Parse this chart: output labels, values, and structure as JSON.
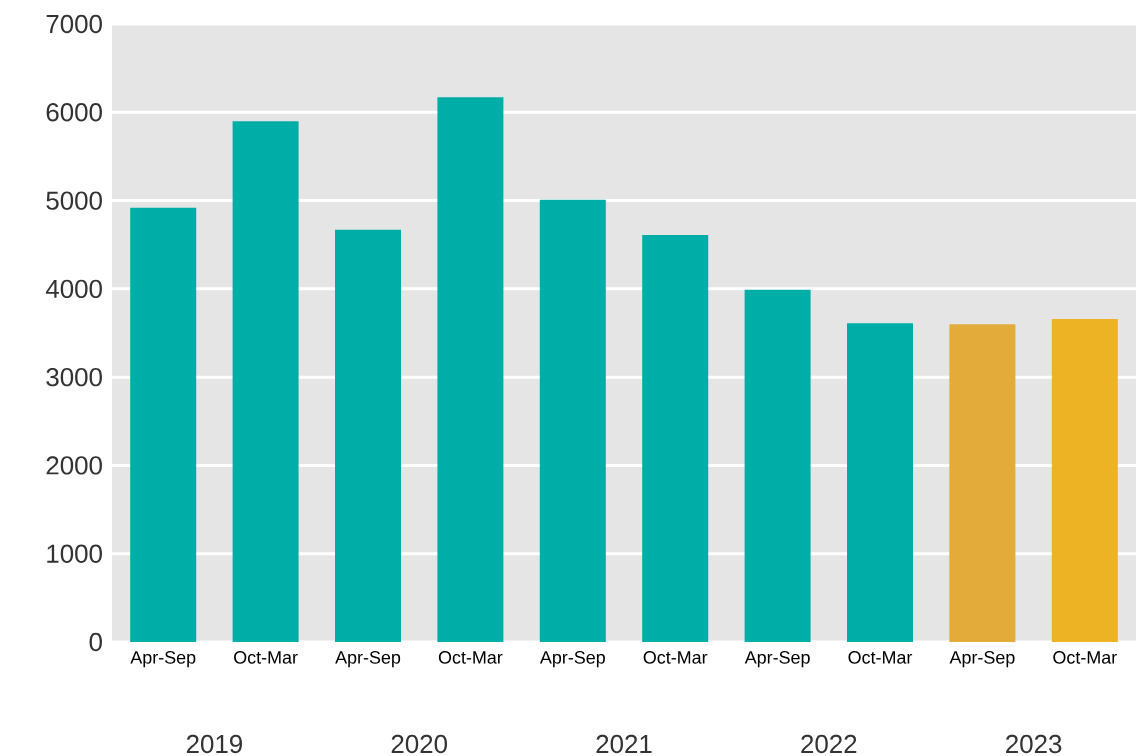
{
  "chart_data": {
    "type": "bar",
    "categories": [
      "Apr-Sep",
      "Oct-Mar",
      "Apr-Sep",
      "Oct-Mar",
      "Apr-Sep",
      "Oct-Mar",
      "Apr-Sep",
      "Oct-Mar",
      "Apr-Sep",
      "Oct-Mar"
    ],
    "values": [
      4920,
      5900,
      4670,
      6170,
      5010,
      4610,
      3990,
      3610,
      3600,
      3660
    ],
    "colors": [
      "#00aea8",
      "#00aea8",
      "#00aea8",
      "#00aea8",
      "#00aea8",
      "#00aea8",
      "#00aea8",
      "#00aea8",
      "#e3ab3a",
      "#eeb225"
    ],
    "ylim": [
      0,
      7000
    ],
    "yticks": [
      0,
      1000,
      2000,
      3000,
      4000,
      5000,
      6000,
      7000
    ],
    "grid": "y",
    "annotations": [
      "2019",
      "2020",
      "2021",
      "2022",
      "2023"
    ]
  }
}
